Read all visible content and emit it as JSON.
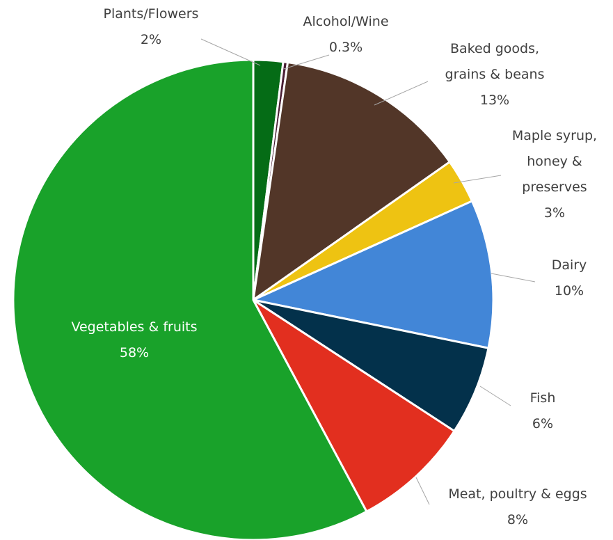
{
  "chart_data": {
    "type": "pie",
    "title": "",
    "start_angle_deg": 0,
    "direction": "clockwise",
    "slices": [
      {
        "label": "Plants/Flowers",
        "value": 2,
        "value_label": "2%",
        "color": "#056c16",
        "label_lines": [
          "Plants/Flowers"
        ],
        "label_inside": false
      },
      {
        "label": "Alcohol/Wine",
        "value": 0.3,
        "value_label": "0.3%",
        "color": "#4a1f35",
        "label_lines": [
          "Alcohol/Wine"
        ],
        "label_inside": false
      },
      {
        "label": "Baked goods, grains & beans",
        "value": 13,
        "value_label": "13%",
        "color": "#523628",
        "label_lines": [
          "Baked goods,",
          "grains & beans"
        ],
        "label_inside": false
      },
      {
        "label": "Maple syrup, honey & preserves",
        "value": 3,
        "value_label": "3%",
        "color": "#eec312",
        "label_lines": [
          "Maple syrup,",
          "honey &",
          "preserves"
        ],
        "label_inside": false
      },
      {
        "label": "Dairy",
        "value": 10,
        "value_label": "10%",
        "color": "#4286d7",
        "label_lines": [
          "Dairy"
        ],
        "label_inside": false
      },
      {
        "label": "Fish",
        "value": 6,
        "value_label": "6%",
        "color": "#03314b",
        "label_lines": [
          "Fish"
        ],
        "label_inside": false
      },
      {
        "label": "Meat, poultry & eggs",
        "value": 8,
        "value_label": "8%",
        "color": "#e22f1f",
        "label_lines": [
          "Meat, poultry & eggs"
        ],
        "label_inside": false
      },
      {
        "label": "Vegetables & fruits",
        "value": 58,
        "value_label": "58%",
        "color": "#19a22a",
        "label_lines": [
          "Vegetables & fruits"
        ],
        "label_inside": true
      }
    ]
  }
}
